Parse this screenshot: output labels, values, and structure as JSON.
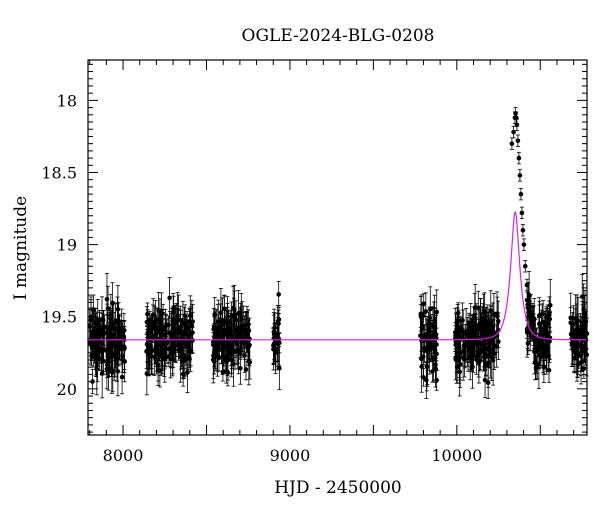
{
  "chart_data": {
    "type": "scatter",
    "title": "OGLE-2024-BLG-0208",
    "xlabel": "HJD - 2450000",
    "ylabel": "I magnitude",
    "xlim": [
      7790,
      10780
    ],
    "ylim": [
      20.32,
      17.72
    ],
    "y_inverted": true,
    "x_ticks": [
      8000,
      9000,
      10000
    ],
    "x_tick_labels": [
      "8000",
      "9000",
      "10000"
    ],
    "y_ticks": [
      18,
      18.5,
      19,
      19.5,
      20
    ],
    "y_tick_labels": [
      "18",
      "18.5",
      "19",
      "19.5",
      "20"
    ],
    "grid": false,
    "series": [
      {
        "name": "data",
        "kind": "points_with_errorbars",
        "color": "#000000",
        "season_ranges": [
          [
            7800,
            8010
          ],
          [
            8140,
            8420
          ],
          [
            8540,
            8760
          ],
          [
            8900,
            8940
          ],
          [
            9780,
            9880
          ],
          [
            9990,
            10250
          ],
          [
            10420,
            10560
          ],
          [
            10680,
            10780
          ]
        ],
        "baseline_magnitude": 19.65,
        "scatter_sigma": 0.11,
        "typical_error": 0.12,
        "peak_points": [
          {
            "x": 10330,
            "y": 18.3
          },
          {
            "x": 10340,
            "y": 18.22
          },
          {
            "x": 10348,
            "y": 18.12
          },
          {
            "x": 10352,
            "y": 18.09
          },
          {
            "x": 10356,
            "y": 18.12
          },
          {
            "x": 10360,
            "y": 18.17
          },
          {
            "x": 10366,
            "y": 18.28
          },
          {
            "x": 10372,
            "y": 18.4
          },
          {
            "x": 10378,
            "y": 18.52
          },
          {
            "x": 10384,
            "y": 18.65
          },
          {
            "x": 10390,
            "y": 18.78
          },
          {
            "x": 10396,
            "y": 18.9
          },
          {
            "x": 10402,
            "y": 19.0
          },
          {
            "x": 10410,
            "y": 19.15
          },
          {
            "x": 10420,
            "y": 19.28
          }
        ]
      },
      {
        "name": "model",
        "kind": "line",
        "color": "#dd22dd",
        "model": "paczynski",
        "t0": 10350,
        "u0": 0.48,
        "tE": 48,
        "baseline_magnitude": 19.66
      }
    ]
  }
}
